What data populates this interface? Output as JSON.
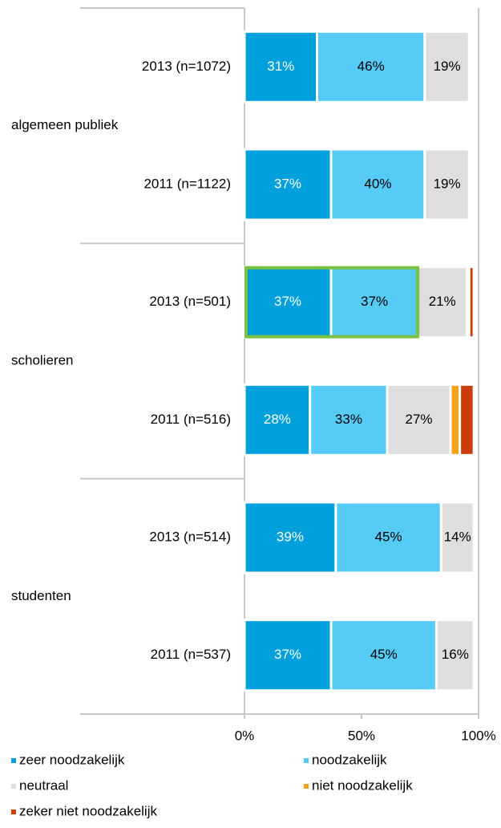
{
  "chart_data": {
    "type": "stacked_barh",
    "categories": [
      "2013 (n=1072)",
      "2011 (n=1122)",
      "2013 (n=501)",
      "2011 (n=516)",
      "2013 (n=514)",
      "2011 (n=537)"
    ],
    "groups": [
      "algemeen publiek",
      "scholieren",
      "studenten"
    ],
    "series": [
      {
        "name": "zeer noodzakelijk",
        "color": "#00a0dc",
        "values": [
          31,
          37,
          37,
          28,
          39,
          37
        ],
        "value_labels": [
          "31%",
          "37%",
          "37%",
          "28%",
          "39%",
          "37%"
        ]
      },
      {
        "name": "noodzakelijk",
        "color": "#55cbf5",
        "values": [
          46,
          40,
          37,
          33,
          45,
          45
        ],
        "value_labels": [
          "46%",
          "40%",
          "37%",
          "33%",
          "45%",
          "45%"
        ]
      },
      {
        "name": "neutraal",
        "color": "#dedede",
        "values": [
          19,
          19,
          21,
          27,
          14,
          16
        ],
        "value_labels": [
          "19%",
          "19%",
          "21%",
          "27%",
          "14%",
          "16%"
        ]
      },
      {
        "name": "niet noodzakelijk",
        "color": "#f7a21b",
        "values": [
          1,
          1,
          1,
          4,
          0,
          1
        ]
      },
      {
        "name": "zeker niet noodzakelijk",
        "color": "#cc3d0b",
        "values": [
          0,
          1,
          2,
          6,
          0,
          0
        ]
      }
    ],
    "xlim": [
      0,
      100
    ],
    "xticks": [
      {
        "value": 0,
        "label": "0%"
      },
      {
        "value": 50,
        "label": "50%"
      },
      {
        "value": 100,
        "label": "100%"
      }
    ],
    "highlight": {
      "color": "#7cc242"
    }
  }
}
